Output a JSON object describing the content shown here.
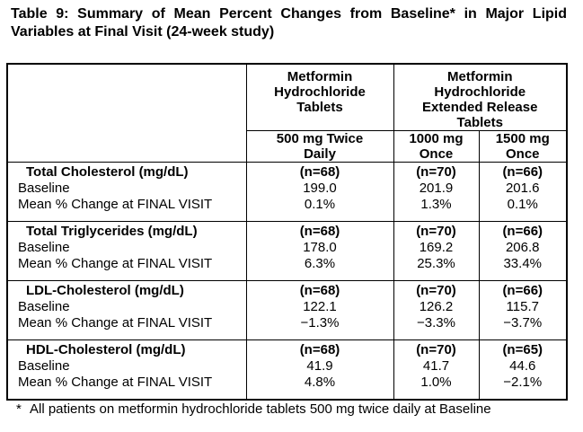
{
  "title": {
    "line1": "Table 9: Summary of Mean Percent Changes from Baseline* in Major Lipid",
    "line2": "Variables at Final Visit (24-week study)"
  },
  "table": {
    "column_groups": {
      "ir": "Metformin\nHydrochloride\nTablets",
      "er": "Metformin\nHydrochloride\nExtended Release\nTablets"
    },
    "columns": {
      "c1": "500 mg Twice\nDaily",
      "c2": "1000 mg\nOnce",
      "c3": "1500 mg\nOnce"
    },
    "row_labels": {
      "baseline": "Baseline",
      "mean_change": "Mean % Change at FINAL VISIT"
    },
    "sections": [
      {
        "variable": "Total Cholesterol (mg/dL)",
        "n": [
          "(n=68)",
          "(n=70)",
          "(n=66)"
        ],
        "baseline": [
          "199.0",
          "201.9",
          "201.6"
        ],
        "mean_change": [
          "0.1%",
          "1.3%",
          "0.1%"
        ]
      },
      {
        "variable": "Total Triglycerides (mg/dL)",
        "n": [
          "(n=68)",
          "(n=70)",
          "(n=66)"
        ],
        "baseline": [
          "178.0",
          "169.2",
          "206.8"
        ],
        "mean_change": [
          "6.3%",
          "25.3%",
          "33.4%"
        ]
      },
      {
        "variable": "LDL-Cholesterol (mg/dL)",
        "n": [
          "(n=68)",
          "(n=70)",
          "(n=66)"
        ],
        "baseline": [
          "122.1",
          "126.2",
          "115.7"
        ],
        "mean_change": [
          "−1.3%",
          "−3.3%",
          "−3.7%"
        ]
      },
      {
        "variable": "HDL-Cholesterol (mg/dL)",
        "n": [
          "(n=68)",
          "(n=70)",
          "(n=65)"
        ],
        "baseline": [
          "41.9",
          "41.7",
          "44.6"
        ],
        "mean_change": [
          "4.8%",
          "1.0%",
          "−2.1%"
        ]
      }
    ]
  },
  "footnote": {
    "marker": "*",
    "text": "All patients on metformin hydrochloride tablets 500 mg twice daily at Baseline"
  },
  "colors": {
    "text": "#000000",
    "border": "#000000",
    "background": "#ffffff"
  }
}
